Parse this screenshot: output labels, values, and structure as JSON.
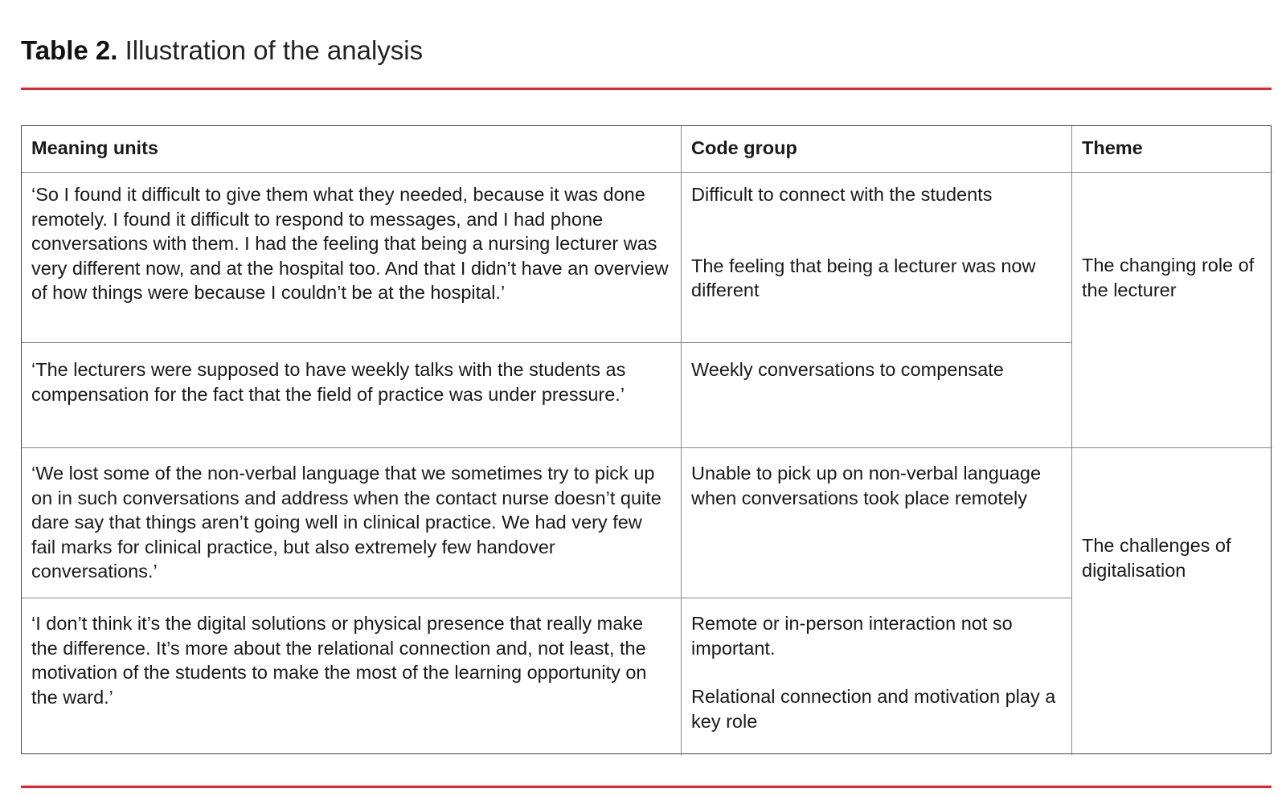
{
  "title": {
    "label": "Table 2.",
    "text": "Illustration of the analysis"
  },
  "accent_color": "#e8232b",
  "table": {
    "headers": [
      "Meaning units",
      "Code group",
      "Theme"
    ],
    "rows": [
      {
        "meaning": "‘So I found it difficult to give them what they needed, because it was done remotely. I found it difficult to respond to messages, and I had phone conversations with them. I had the feeling that being a nursing lecturer was very different now, and at the hospital too. And that I didn’t have an overview of how things were because I couldn’t be at the hospital.’",
        "codes": [
          "Difficult to connect with the students",
          "The feeling that being a lecturer was now different"
        ]
      },
      {
        "meaning": "‘The lecturers were supposed to have weekly talks with the students as compensation for the fact that the field of practice was under pressure.’",
        "codes": [
          "Weekly conversations to compensate"
        ]
      },
      {
        "meaning": "‘We lost some of the non-verbal language that we sometimes try to pick up on in such conversations and address when the contact nurse doesn’t quite dare say that things aren’t going well in clinical practice. We had very few fail marks for clinical practice, but also extremely few handover conversations.’",
        "codes": [
          "Unable to pick up on non-verbal language when conversations took place remotely"
        ]
      },
      {
        "meaning": "‘I don’t think it’s the digital solutions or physical presence that really make the difference. It’s more about the relational connection and, not least, the motivation of the students to make the most of the learning opportunity on the ward.’",
        "codes": [
          "Remote or in-person interaction not so important.",
          "Relational connection and motivation play a key role"
        ]
      }
    ],
    "themes": [
      "The changing role of the lecturer",
      "The challenges of digitalisation"
    ]
  }
}
